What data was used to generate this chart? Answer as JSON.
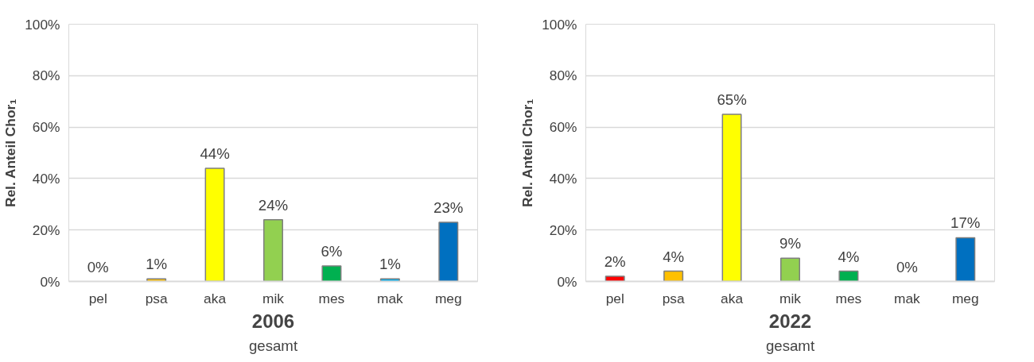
{
  "chart_data": [
    {
      "type": "bar",
      "title": "2006",
      "subtitle": "gesamt",
      "ylabel": "Rel. Anteil Chor₁",
      "categories": [
        "pel",
        "psa",
        "aka",
        "mik",
        "mes",
        "mak",
        "meg"
      ],
      "values": [
        0,
        1,
        44,
        24,
        6,
        1,
        23
      ],
      "value_labels": [
        "0%",
        "1%",
        "44%",
        "24%",
        "6%",
        "1%",
        "23%"
      ],
      "colors": [
        null,
        "#ffc000",
        "#ffff00",
        "#92d050",
        "#00b050",
        "#00b0f0",
        "#0070c0"
      ],
      "ylim": [
        0,
        100
      ],
      "yticks": [
        {
          "value": 0,
          "label": "0%"
        },
        {
          "value": 20,
          "label": "20%"
        },
        {
          "value": 40,
          "label": "40%"
        },
        {
          "value": 60,
          "label": "60%"
        },
        {
          "value": 80,
          "label": "80%"
        },
        {
          "value": 100,
          "label": "100%"
        }
      ],
      "grid": "y"
    },
    {
      "type": "bar",
      "title": "2022",
      "subtitle": "gesamt",
      "ylabel": "Rel. Anteil Chor₁",
      "categories": [
        "pel",
        "psa",
        "aka",
        "mik",
        "mes",
        "mak",
        "meg"
      ],
      "values": [
        2,
        4,
        65,
        9,
        4,
        0,
        17
      ],
      "value_labels": [
        "2%",
        "4%",
        "65%",
        "9%",
        "4%",
        "0%",
        "17%"
      ],
      "colors": [
        "#ff0000",
        "#ffc000",
        "#ffff00",
        "#92d050",
        "#00b050",
        null,
        "#0070c0"
      ],
      "ylim": [
        0,
        100
      ],
      "yticks": [
        {
          "value": 0,
          "label": "0%"
        },
        {
          "value": 20,
          "label": "20%"
        },
        {
          "value": 40,
          "label": "40%"
        },
        {
          "value": 60,
          "label": "60%"
        },
        {
          "value": 80,
          "label": "80%"
        },
        {
          "value": 100,
          "label": "100%"
        }
      ],
      "grid": "y"
    }
  ]
}
